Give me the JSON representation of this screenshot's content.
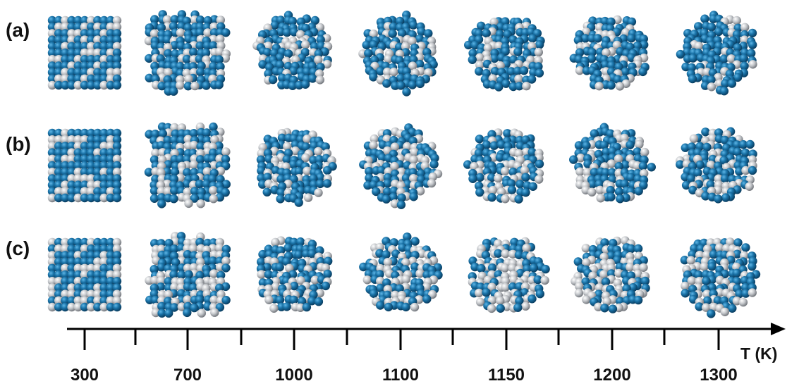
{
  "row_labels": [
    "(a)",
    "(b)",
    "(c)"
  ],
  "axis": {
    "label": "T (K)",
    "temperatures": [
      "300",
      "700",
      "1000",
      "1100",
      "1150",
      "1200",
      "1300"
    ]
  },
  "colors": {
    "atom_a": "#1a73a8",
    "atom_b": "#b9bcc0",
    "axis": "#000000"
  }
}
